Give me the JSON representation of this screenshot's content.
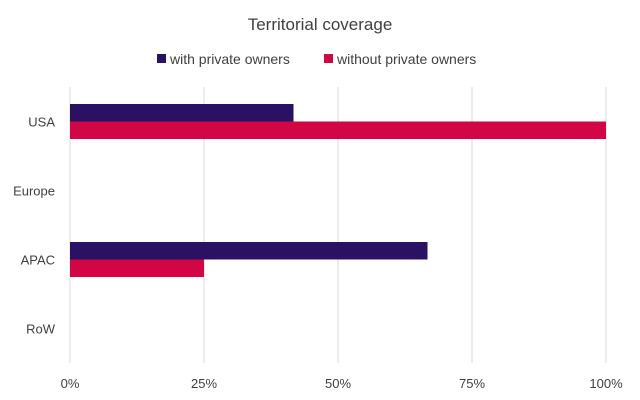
{
  "chart_data": {
    "type": "bar",
    "orientation": "horizontal",
    "title": "Territorial coverage",
    "categories": [
      "USA",
      "Europe",
      "APAC",
      "RoW"
    ],
    "series": [
      {
        "name": "with private owners",
        "color": "#2a1163",
        "values": [
          0.417,
          0,
          0.667,
          0
        ]
      },
      {
        "name": "without private owners",
        "color": "#d20644",
        "values": [
          1.0,
          0,
          0.25,
          0
        ]
      }
    ],
    "xlim": [
      0,
      1
    ],
    "xticks": [
      0,
      0.25,
      0.5,
      0.75,
      1
    ],
    "xtick_labels": [
      "0%",
      "25%",
      "50%",
      "75%",
      "100%"
    ],
    "xlabel": "",
    "ylabel": "",
    "grid": "vertical",
    "legend": "top"
  }
}
